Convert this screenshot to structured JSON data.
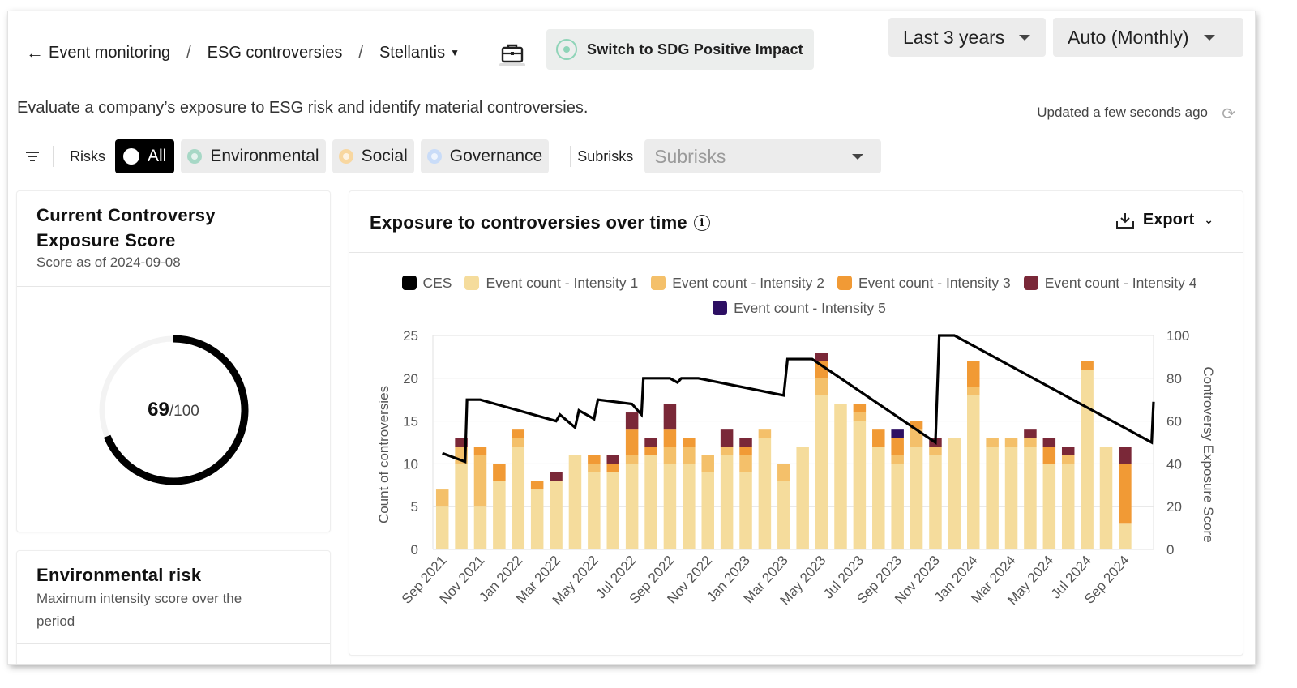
{
  "breadcrumb": {
    "back_label": "Event monitoring",
    "sep": "/",
    "item2": "ESG controversies",
    "item3": "Stellantis"
  },
  "sdg_button": "Switch to SDG Positive Impact",
  "period_dropdown": "Last 3 years",
  "interval_dropdown": "Auto (Monthly)",
  "description": "Evaluate a company’s exposure to ESG risk and identify material controversies.",
  "updated_text": "Updated a few seconds ago",
  "filters": {
    "risks_label": "Risks",
    "chips": [
      {
        "label": "All",
        "color": "#000000"
      },
      {
        "label": "Environmental",
        "color": "#a7d8c6"
      },
      {
        "label": "Social",
        "color": "#f8d7a0"
      },
      {
        "label": "Governance",
        "color": "#c9dcf8"
      }
    ],
    "subrisks_label": "Subrisks",
    "subrisks_placeholder": "Subrisks"
  },
  "score_card": {
    "title_line1": "Current Controversy",
    "title_line2": "Exposure Score",
    "subtitle": "Score as of 2024-09-08",
    "value": "69",
    "max": "/100",
    "fraction": 0.69
  },
  "env_card": {
    "title": "Environmental risk",
    "subtitle_line1": "Maximum intensity score over the",
    "subtitle_line2": "period"
  },
  "chart_card": {
    "title": "Exposure to controversies over time",
    "export_label": "Export"
  },
  "chart_data": {
    "type": "bar",
    "stacked": true,
    "categories": [
      "Sep 2021",
      "Oct 2021",
      "Nov 2021",
      "Dec 2021",
      "Jan 2022",
      "Feb 2022",
      "Mar 2022",
      "Apr 2022",
      "May 2022",
      "Jun 2022",
      "Jul 2022",
      "Aug 2022",
      "Sep 2022",
      "Oct 2022",
      "Nov 2022",
      "Dec 2022",
      "Jan 2023",
      "Feb 2023",
      "Mar 2023",
      "Apr 2023",
      "May 2023",
      "Jun 2023",
      "Jul 2023",
      "Aug 2023",
      "Sep 2023",
      "Oct 2023",
      "Nov 2023",
      "Dec 2023",
      "Jan 2024",
      "Feb 2024",
      "Mar 2024",
      "Apr 2024",
      "May 2024",
      "Jun 2024",
      "Jul 2024",
      "Aug 2024",
      "Sep 2024",
      "Oct 2024"
    ],
    "x_tick_labels": [
      "Sep 2021",
      "Nov 2021",
      "Jan 2022",
      "Mar 2022",
      "May 2022",
      "Jul 2022",
      "Sep 2022",
      "Nov 2022",
      "Jan 2023",
      "Mar 2023",
      "May 2023",
      "Jul 2023",
      "Sep 2023",
      "Nov 2023",
      "Jan 2024",
      "Mar 2024",
      "May 2024",
      "Jul 2024",
      "Sep 2024"
    ],
    "ylabel": "Count of controversies",
    "y2label": "Controversy Exposure Score",
    "ylim": [
      0,
      25
    ],
    "y2lim": [
      0,
      100
    ],
    "yticks": [
      "0",
      "5",
      "10",
      "15",
      "20",
      "25"
    ],
    "y2ticks": [
      "0",
      "20",
      "40",
      "60",
      "80",
      "100"
    ],
    "grid": true,
    "legend_position": "top",
    "series": [
      {
        "name": "Event count - Intensity 1",
        "color": "#f5dc9c",
        "values": [
          5,
          10,
          5,
          8,
          12,
          7,
          8,
          11,
          9,
          9,
          10,
          11,
          10,
          10,
          9,
          11,
          9,
          13,
          8,
          12,
          18,
          17,
          15,
          12,
          10,
          12,
          11,
          13,
          18,
          12,
          12,
          12,
          10,
          10,
          21,
          12,
          3,
          0
        ]
      },
      {
        "name": "Event count - Intensity 2",
        "color": "#f4c06a",
        "values": [
          2,
          2,
          6,
          0,
          1,
          0,
          0,
          0,
          1,
          0,
          1,
          0,
          2,
          2,
          2,
          1,
          2,
          1,
          2,
          0,
          2,
          0,
          1,
          0,
          1,
          2,
          1,
          0,
          1,
          1,
          1,
          1,
          0,
          1,
          0,
          0,
          0,
          0
        ]
      },
      {
        "name": "Event count - Intensity 3",
        "color": "#f19a35",
        "values": [
          0,
          0,
          1,
          2,
          1,
          1,
          0,
          0,
          1,
          1,
          3,
          1,
          2,
          1,
          0,
          0,
          1,
          0,
          0,
          0,
          2,
          0,
          1,
          2,
          2,
          1,
          0,
          0,
          3,
          0,
          0,
          0,
          2,
          0,
          1,
          0,
          7,
          0
        ]
      },
      {
        "name": "Event count - Intensity 4",
        "color": "#7a2838",
        "values": [
          0,
          1,
          0,
          0,
          0,
          0,
          1,
          0,
          0,
          1,
          2,
          1,
          3,
          0,
          0,
          2,
          1,
          0,
          0,
          0,
          1,
          0,
          0,
          0,
          0,
          0,
          1,
          0,
          0,
          0,
          0,
          1,
          1,
          1,
          0,
          0,
          2,
          0
        ]
      },
      {
        "name": "Event count - Intensity 5",
        "color": "#2d0f63",
        "values": [
          0,
          0,
          0,
          0,
          0,
          0,
          0,
          0,
          0,
          0,
          0,
          0,
          0,
          0,
          0,
          0,
          0,
          0,
          0,
          0,
          0,
          0,
          0,
          0,
          1,
          0,
          0,
          0,
          0,
          0,
          0,
          0,
          0,
          0,
          0,
          0,
          0,
          0
        ]
      }
    ],
    "line_series": {
      "name": "CES",
      "color": "#000000",
      "axis": "right",
      "points": [
        [
          0,
          45
        ],
        [
          1.2,
          41
        ],
        [
          1.3,
          70
        ],
        [
          2,
          70
        ],
        [
          6,
          60
        ],
        [
          6.2,
          63
        ],
        [
          7,
          57
        ],
        [
          7.2,
          65
        ],
        [
          8,
          61
        ],
        [
          8.2,
          70
        ],
        [
          10,
          68
        ],
        [
          10.5,
          63
        ],
        [
          10.6,
          80
        ],
        [
          12,
          80
        ],
        [
          12.4,
          78
        ],
        [
          12.6,
          80
        ],
        [
          13.5,
          80
        ],
        [
          18,
          72
        ],
        [
          18.2,
          89
        ],
        [
          19.5,
          89
        ],
        [
          26,
          50
        ],
        [
          26.2,
          100
        ],
        [
          27,
          100
        ],
        [
          37.4,
          50
        ],
        [
          37.5,
          69
        ]
      ]
    }
  }
}
